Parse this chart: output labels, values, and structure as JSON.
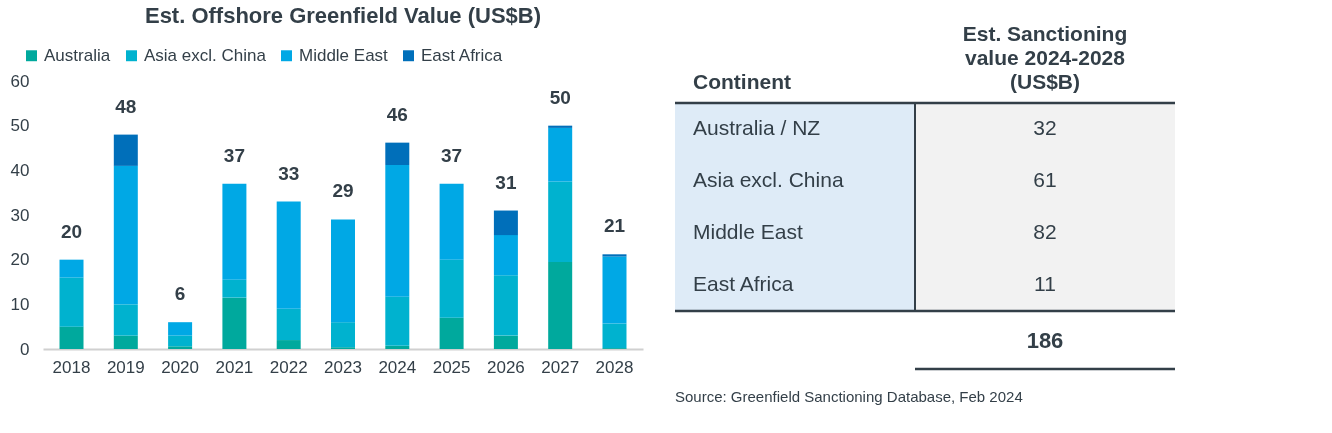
{
  "chart_data": [
    {
      "type": "bar",
      "title": "Est. Offshore Greenfield Value (US$B)",
      "stacked": true,
      "legend": "top",
      "grid": false,
      "categories": [
        "2018",
        "2019",
        "2020",
        "2021",
        "2022",
        "2023",
        "2024",
        "2025",
        "2026",
        "2027",
        "2028"
      ],
      "series": [
        {
          "name": "Australia",
          "color": "#00a99d",
          "values": [
            5,
            3,
            0.6,
            11.5,
            2,
            0.4,
            0.7,
            7,
            3,
            19.5,
            0.2
          ]
        },
        {
          "name": "Asia excl. China",
          "color": "#00b2cf",
          "values": [
            11,
            7,
            2.4,
            4,
            7,
            5.6,
            11,
            13,
            13.5,
            18,
            5.5
          ]
        },
        {
          "name": "Middle East",
          "color": "#00a8e5",
          "values": [
            4,
            31,
            3,
            21.5,
            24,
            23,
            29.5,
            17,
            9,
            12,
            15
          ]
        },
        {
          "name": "East Africa",
          "color": "#006fba",
          "values": [
            null,
            7,
            null,
            null,
            null,
            null,
            5,
            null,
            5.5,
            0.5,
            0.5
          ]
        }
      ],
      "totals": [
        "20",
        "48",
        "6",
        "37",
        "33",
        "29",
        "46",
        "37",
        "31",
        "50",
        "21"
      ],
      "ylim": [
        0,
        60
      ],
      "yticks": [
        0,
        10,
        20,
        30,
        40,
        50,
        60
      ]
    },
    {
      "type": "other",
      "xlabel": "Continent",
      "ylabel": "Est. Sanctioning value 2024-2028 (US$B)",
      "data_labels": true,
      "categories": [
        "Australia / NZ",
        "Asia excl. China",
        "Middle East",
        "East Africa"
      ],
      "values": [
        32,
        61,
        82,
        11
      ],
      "totals": [
        "186"
      ],
      "annotations": [
        "Source: Greenfield Sanctioning Database, Feb 2024"
      ]
    }
  ]
}
